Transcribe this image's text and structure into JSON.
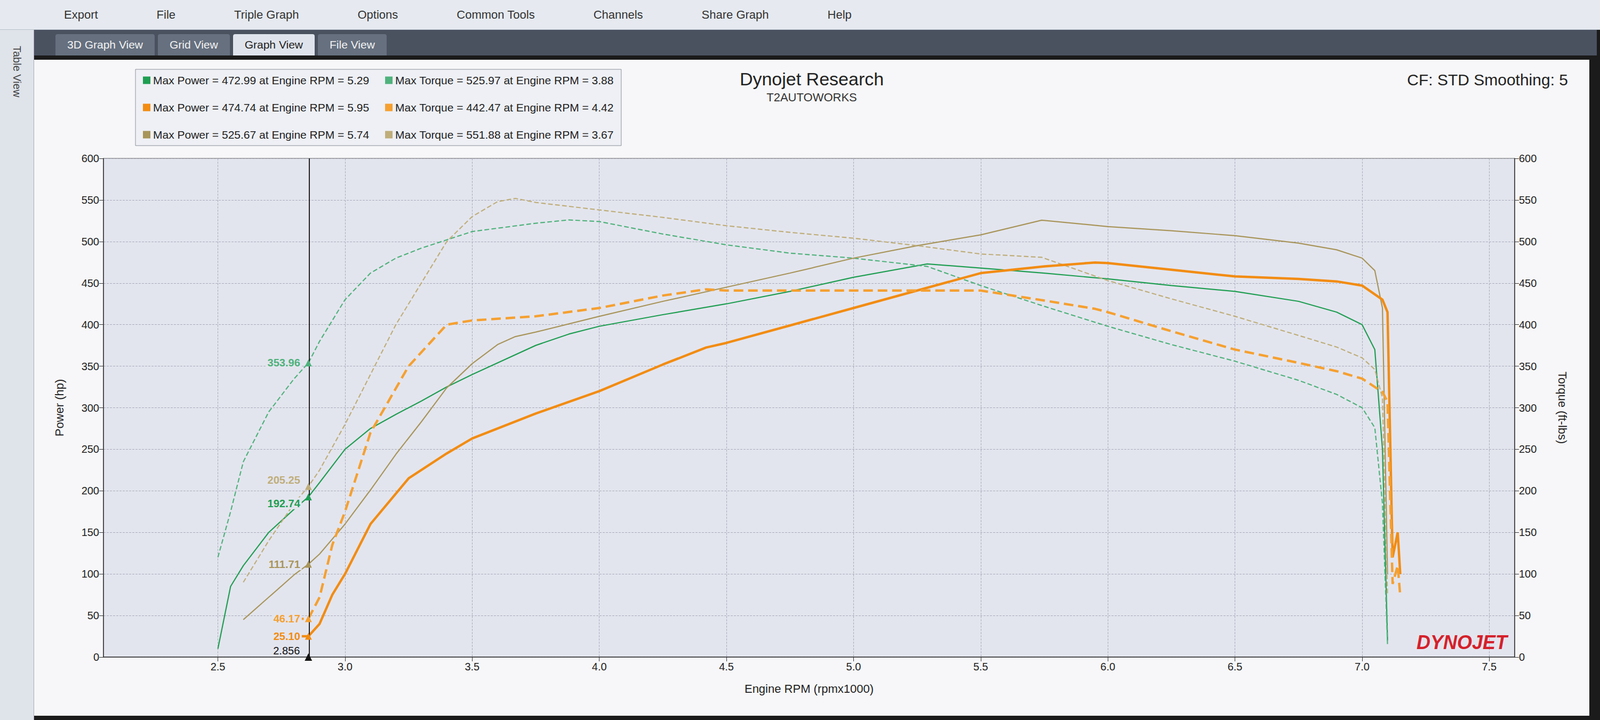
{
  "window": {
    "ribbon": [
      "Export",
      "File",
      "Triple Graph",
      "Options",
      "Common Tools",
      "Channels",
      "Share Graph",
      "Help"
    ],
    "tabs": [
      "3D Graph View",
      "Grid View",
      "Graph View",
      "File View"
    ],
    "active_tab": "Graph View",
    "side_panel": "Table View"
  },
  "chart_data": {
    "type": "line",
    "title": "Dynojet Research",
    "subtitle": "T2AUTOWORKS",
    "corner_text": "CF: STD Smoothing: 5",
    "watermark": "DYNOJET",
    "x_label": "Engine RPM (rpmx1000)",
    "y_label": "Power (hp)",
    "y2_label": "Torque (ft-lbs)",
    "xlim": [
      2.05,
      7.6
    ],
    "xticks": [
      2.5,
      {
        "value": 3,
        "label": "3.0"
      },
      3.5,
      {
        "value": 4,
        "label": "4.0"
      },
      4.5,
      {
        "value": 5,
        "label": "5.0"
      },
      5.5,
      {
        "value": 6,
        "label": "6.0"
      },
      6.5,
      {
        "value": 7,
        "label": "7.0"
      },
      7.5
    ],
    "ylim": [
      0,
      600
    ],
    "yticks": [
      0,
      50,
      100,
      150,
      200,
      250,
      300,
      350,
      400,
      450,
      500,
      550,
      600
    ],
    "y2lim": [
      0,
      600
    ],
    "y2ticks": [
      0,
      50,
      100,
      150,
      200,
      250,
      300,
      350,
      400,
      450,
      500,
      550,
      600
    ],
    "grid": true,
    "legend": "upper left",
    "cursor": 2.856,
    "series": [
      {
        "name": "Max Power = 472.99 at Engine RPM = 5.29",
        "color": "#1f9e52",
        "line_style": "solid",
        "x": [
          2.5,
          2.55,
          2.6,
          2.7,
          2.8,
          2.856,
          2.9,
          3.0,
          3.1,
          3.2,
          3.3,
          3.4,
          3.5,
          3.75,
          3.88,
          4.0,
          4.25,
          4.5,
          4.75,
          5.0,
          5.29,
          5.5,
          5.75,
          6.0,
          6.25,
          6.5,
          6.75,
          6.9,
          7.0,
          7.05,
          7.08,
          7.1
        ],
        "values": [
          10,
          85,
          110,
          150,
          178,
          192.74,
          210,
          250,
          275,
          292,
          308,
          325,
          340,
          375,
          388.6,
          398,
          412,
          425,
          440,
          457,
          472.99,
          468,
          462,
          455,
          447,
          440,
          428,
          415,
          400,
          370,
          250,
          20
        ],
        "cursor_value": 192.74
      },
      {
        "name": "Max Torque = 525.97 at Engine RPM = 3.88",
        "color": "#4fb27c",
        "line_style": "dashed",
        "axis": "y2",
        "x": [
          2.5,
          2.55,
          2.6,
          2.7,
          2.8,
          2.856,
          2.9,
          3.0,
          3.1,
          3.2,
          3.3,
          3.4,
          3.5,
          3.75,
          3.88,
          4.0,
          4.25,
          4.5,
          4.75,
          5.0,
          5.29,
          5.5,
          5.75,
          6.0,
          6.25,
          6.5,
          6.75,
          6.9,
          7.0,
          7.05,
          7.08,
          7.1
        ],
        "values": [
          120,
          175,
          235,
          295,
          335,
          353.96,
          380,
          430,
          462,
          480,
          492,
          502,
          512,
          522,
          525.97,
          524,
          509,
          496,
          486,
          480,
          470,
          447,
          422,
          398,
          376,
          356,
          333,
          316,
          300,
          276,
          185,
          15
        ],
        "cursor_value": 353.96
      },
      {
        "name": "Max Power = 474.74 at Engine RPM = 5.95",
        "color": "#f28c12",
        "line_style": "thick",
        "x": [
          2.8,
          2.83,
          2.856,
          2.9,
          2.95,
          3.0,
          3.1,
          3.25,
          3.4,
          3.5,
          3.75,
          4.0,
          4.25,
          4.42,
          4.5,
          4.75,
          5.0,
          5.25,
          5.5,
          5.75,
          5.95,
          6.0,
          6.25,
          6.5,
          6.75,
          6.9,
          7.0,
          7.08,
          7.1,
          7.12,
          7.14,
          7.15
        ],
        "values": [
          25,
          25,
          25.1,
          40,
          75,
          100,
          160,
          215,
          245,
          263,
          293,
          320,
          352,
          372.4,
          378,
          399,
          420,
          441,
          462,
          470,
          474.74,
          474,
          466,
          458,
          455,
          452,
          447,
          430,
          415,
          120,
          150,
          100
        ],
        "cursor_value": 25.1,
        "cursor_label": "25.10"
      },
      {
        "name": "Max Torque = 442.47 at Engine RPM = 4.42",
        "color": "#f5a030",
        "line_style": "thick_dashed",
        "axis": "y2",
        "x": [
          2.8,
          2.83,
          2.856,
          2.9,
          2.95,
          3.0,
          3.1,
          3.25,
          3.4,
          3.5,
          3.75,
          4.0,
          4.25,
          4.42,
          4.5,
          4.75,
          5.0,
          5.25,
          5.5,
          5.75,
          5.95,
          6.0,
          6.25,
          6.5,
          6.75,
          6.9,
          7.0,
          7.08,
          7.1,
          7.12,
          7.14,
          7.15
        ],
        "values": [
          46,
          46,
          46.17,
          72,
          135,
          175,
          270,
          350,
          400,
          405,
          410,
          420,
          435,
          442.47,
          441,
          441,
          441,
          441,
          441,
          429,
          419,
          415,
          392,
          370,
          354,
          344,
          335,
          319,
          307,
          88,
          110,
          74
        ],
        "cursor_value": 46.17
      },
      {
        "name": "Max Power = 525.67 at Engine RPM = 5.74",
        "color": "#a8955a",
        "line_style": "solid",
        "x": [
          2.6,
          2.7,
          2.8,
          2.856,
          2.9,
          3.0,
          3.1,
          3.2,
          3.3,
          3.4,
          3.5,
          3.6,
          3.67,
          3.75,
          4.0,
          4.25,
          4.5,
          4.75,
          5.0,
          5.25,
          5.5,
          5.74,
          6.0,
          6.25,
          6.5,
          6.75,
          6.9,
          7.0,
          7.05,
          7.08,
          7.1
        ],
        "values": [
          45,
          72,
          99,
          111.71,
          124,
          160,
          201,
          244,
          283,
          324,
          353,
          376,
          385.6,
          391,
          410,
          428,
          445,
          462,
          480,
          495,
          508,
          525.67,
          518,
          513,
          507,
          498,
          490,
          480,
          465,
          420,
          100
        ],
        "cursor_value": 111.71
      },
      {
        "name": "Max Torque = 551.88 at Engine RPM = 3.67",
        "color": "#bfae7a",
        "line_style": "dashed",
        "axis": "y2",
        "x": [
          2.6,
          2.7,
          2.8,
          2.856,
          2.9,
          3.0,
          3.1,
          3.2,
          3.3,
          3.4,
          3.5,
          3.6,
          3.67,
          3.75,
          4.0,
          4.25,
          4.5,
          4.75,
          5.0,
          5.25,
          5.5,
          5.74,
          6.0,
          6.25,
          6.5,
          6.75,
          6.9,
          7.0,
          7.05,
          7.08,
          7.1
        ],
        "values": [
          90,
          140,
          185,
          205.25,
          225,
          280,
          340,
          400,
          450,
          500,
          530,
          548,
          551.88,
          547,
          538,
          529,
          519,
          511,
          504,
          495,
          485,
          481,
          453,
          431,
          410,
          387,
          373,
          360,
          346,
          312,
          74
        ],
        "cursor_value": 205.25
      }
    ]
  }
}
